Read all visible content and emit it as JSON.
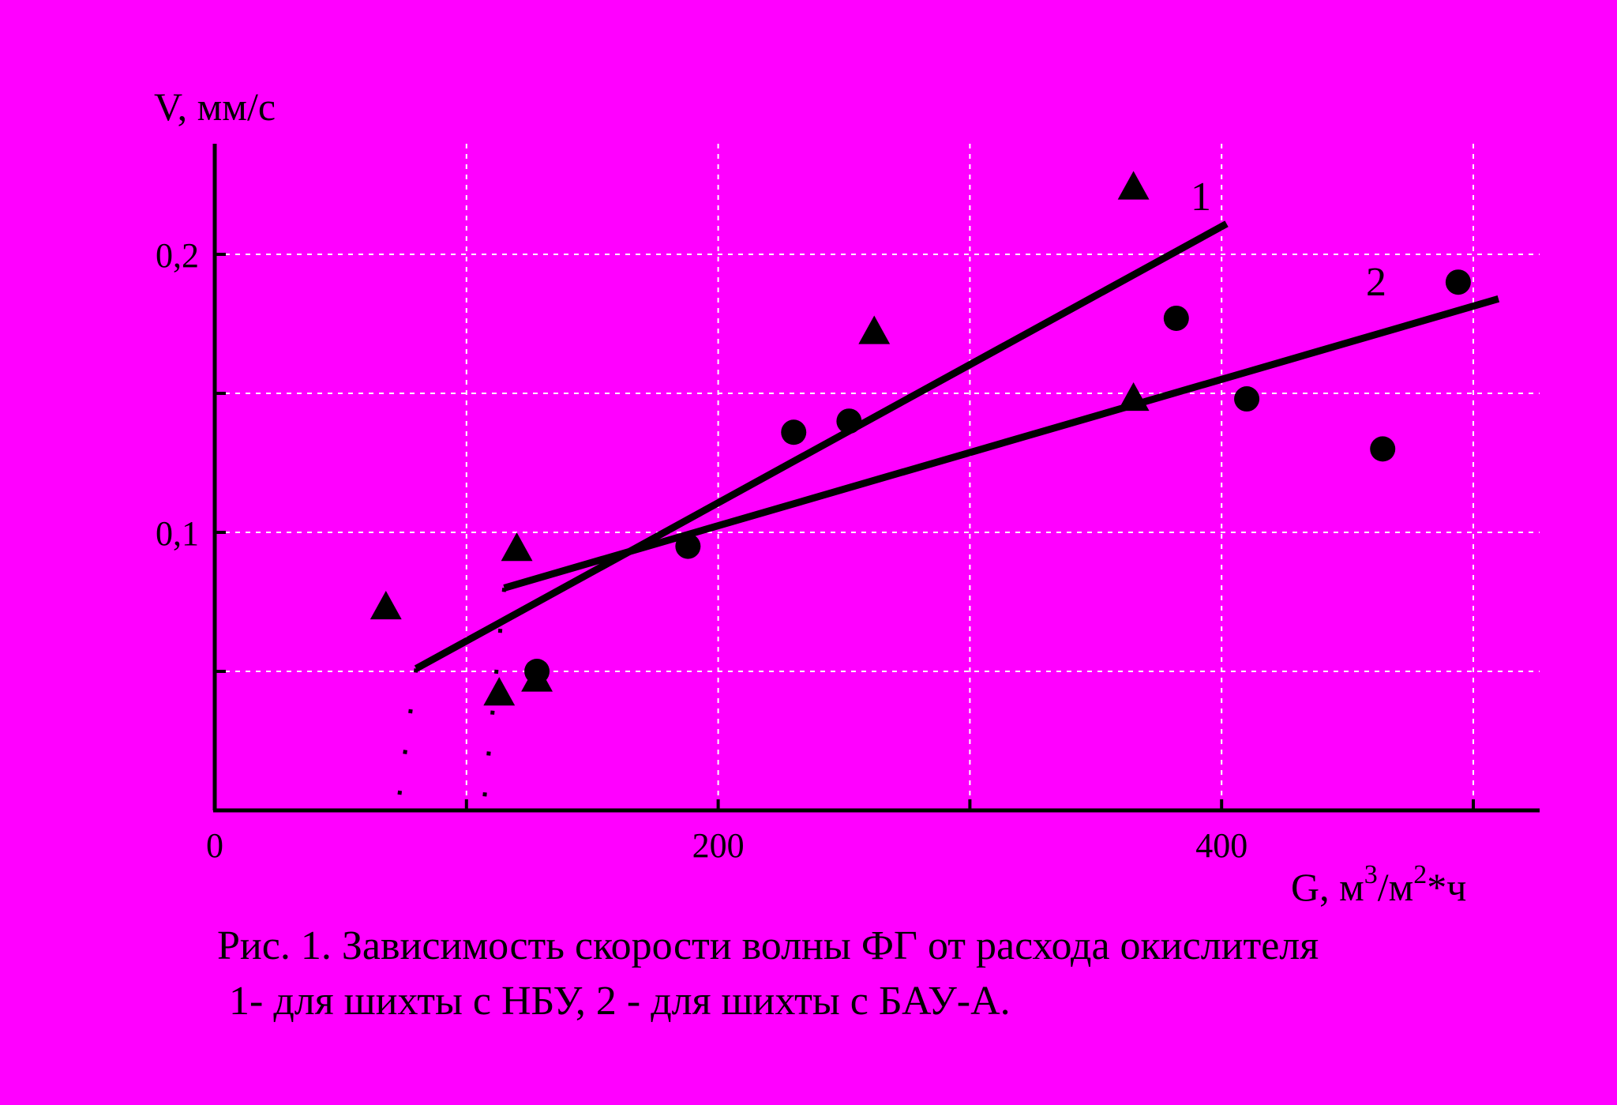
{
  "chart_data": {
    "type": "scatter",
    "title": "",
    "xlabel": "G, м³/м²*ч",
    "ylabel": "V, мм/с",
    "xlim": [
      0,
      525
    ],
    "ylim": [
      0,
      0.24
    ],
    "x_ticks": [
      0,
      200,
      400
    ],
    "x_tick_labels": [
      "0",
      "200",
      "400"
    ],
    "y_ticks": [
      0.1,
      0.2
    ],
    "y_tick_labels": [
      "0,1",
      "0,2"
    ],
    "grid": true,
    "grid_x": [
      100,
      200,
      300,
      400,
      500
    ],
    "grid_y": [
      0.05,
      0.1,
      0.15,
      0.2
    ],
    "series": [
      {
        "name": "1",
        "marker": "triangle",
        "points": [
          [
            68,
            0.073
          ],
          [
            113,
            0.042
          ],
          [
            120,
            0.094
          ],
          [
            128,
            0.047
          ],
          [
            262,
            0.172
          ],
          [
            365,
            0.224
          ],
          [
            365,
            0.148
          ]
        ],
        "fit": [
          [
            80,
            0.051
          ],
          [
            402,
            0.211
          ]
        ]
      },
      {
        "name": "2",
        "marker": "circle",
        "points": [
          [
            128,
            0.05
          ],
          [
            188,
            0.095
          ],
          [
            230,
            0.136
          ],
          [
            252,
            0.14
          ],
          [
            382,
            0.177
          ],
          [
            410,
            0.148
          ],
          [
            464,
            0.13
          ],
          [
            494,
            0.19
          ]
        ],
        "fit": [
          [
            115,
            0.08
          ],
          [
            510,
            0.184
          ]
        ]
      }
    ],
    "dotted_drops": [
      [
        [
          80,
          0.051
        ],
        [
          73,
          0.003
        ]
      ],
      [
        [
          115,
          0.08
        ],
        [
          107,
          0.003
        ]
      ]
    ]
  },
  "labels": {
    "y_axis_title": "V, мм/с",
    "x_axis_main": "G, м",
    "x_axis_sup1": "3",
    "x_axis_mid": "/м",
    "x_axis_sup2": "2",
    "x_axis_tail": "*ч",
    "line1_label": "1",
    "line2_label": "2"
  },
  "caption": {
    "line1": "Рис. 1. Зависимость скорости волны ФГ от расхода окислителя",
    "line2": "1- для шихты с НБУ, 2 - для шихты с БАУ-А."
  },
  "colors": {
    "background": "#FF00FF",
    "ink": "#000000",
    "grid": "#FFFFFF"
  }
}
